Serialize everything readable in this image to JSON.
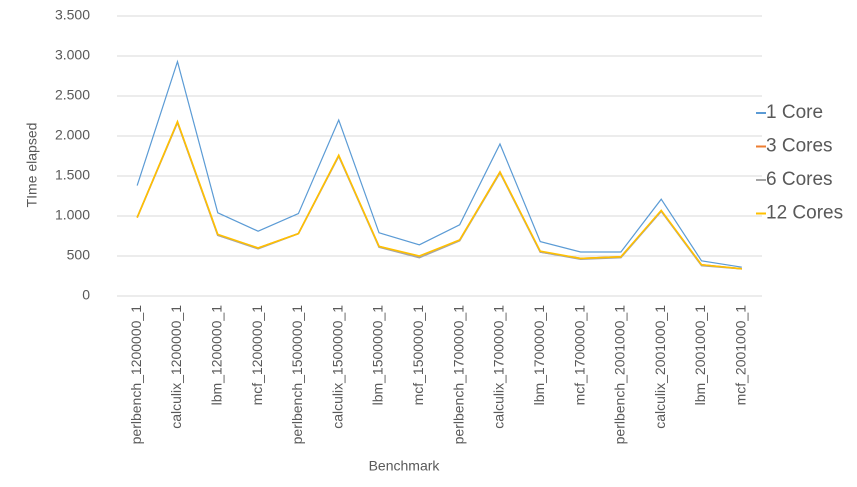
{
  "chart_data": {
    "type": "line",
    "x_label": "Benchmark",
    "y_label": "TIme elapsed",
    "categories": [
      "perlbench_1200000_1",
      "calculix_1200000_1",
      "lbm_1200000_1",
      "mcf_1200000_1",
      "perlbench_1500000_1",
      "calculix_1500000_1",
      "lbm_1500000_1",
      "mcf_1500000_1",
      "perlbench_1700000_1",
      "calculix_1700000_1",
      "lbm_1700000_1",
      "mcf_1700000_1",
      "perlbench_2001000_1",
      "calculix_2001000_1",
      "lbm_2001000_1",
      "mcf_2001000_1"
    ],
    "series": [
      {
        "name": "1 Core",
        "color": "#5b9bd5",
        "values": [
          1380,
          2930,
          1040,
          810,
          1030,
          2200,
          790,
          640,
          890,
          1900,
          680,
          550,
          550,
          1210,
          440,
          360
        ]
      },
      {
        "name": "3 Cores",
        "color": "#ed7d31",
        "values": [
          980,
          2170,
          760,
          600,
          780,
          1750,
          620,
          490,
          700,
          1550,
          550,
          470,
          490,
          1060,
          390,
          340
        ]
      },
      {
        "name": "6 Cores",
        "color": "#a5a5a5",
        "values": [
          980,
          2170,
          760,
          590,
          780,
          1750,
          610,
          480,
          690,
          1540,
          550,
          460,
          480,
          1060,
          380,
          340
        ]
      },
      {
        "name": "12 Cores",
        "color": "#ffc000",
        "values": [
          980,
          2180,
          770,
          600,
          780,
          1760,
          620,
          500,
          700,
          1550,
          560,
          470,
          490,
          1070,
          390,
          340
        ]
      }
    ],
    "ylim": [
      0,
      3500
    ],
    "yticks": [
      0,
      500,
      {
        "value": 1000,
        "label": "1.000"
      },
      {
        "value": 1500,
        "label": "1.500"
      },
      {
        "value": 2000,
        "label": "2.000"
      },
      {
        "value": 2500,
        "label": "2.500"
      },
      {
        "value": 3000,
        "label": "3.000"
      },
      {
        "value": 3500,
        "label": "3.500"
      }
    ],
    "grid": true,
    "legend": "right"
  }
}
